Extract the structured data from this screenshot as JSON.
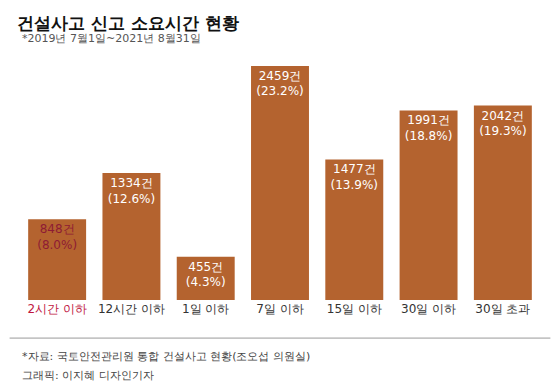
{
  "chart_data": {
    "type": "bar",
    "title": "건설사고 신고 소요시간 현황",
    "subtitle": "*2019년 7월1일~2021년 8월31일",
    "categories": [
      "2시간 이하",
      "12시간 이하",
      "1일 이하",
      "7일 이하",
      "15일 이하",
      "30일 이하",
      "30일 초과"
    ],
    "values": [
      848,
      1334,
      455,
      2459,
      1477,
      1991,
      2042
    ],
    "value_labels": [
      "848건",
      "1334건",
      "455건",
      "2459건",
      "1477건",
      "1991건",
      "2042건"
    ],
    "shares": [
      8.0,
      12.6,
      4.3,
      23.2,
      13.9,
      18.8,
      19.3
    ],
    "share_labels": [
      "(8.0%)",
      "(12.6%)",
      "(4.3%)",
      "(23.2%)",
      "(13.9%)",
      "(18.8%)",
      "(19.3%)"
    ],
    "color": "#b4632f",
    "ylim": [
      0,
      2500
    ],
    "grid": false,
    "data_labels": true,
    "tick_labels": "x",
    "source": "*자료: 국토안전관리원 통합 건설사고 현황(조오섭 의원실)",
    "credit": "그래픽: 이지혜 디자인기자"
  }
}
